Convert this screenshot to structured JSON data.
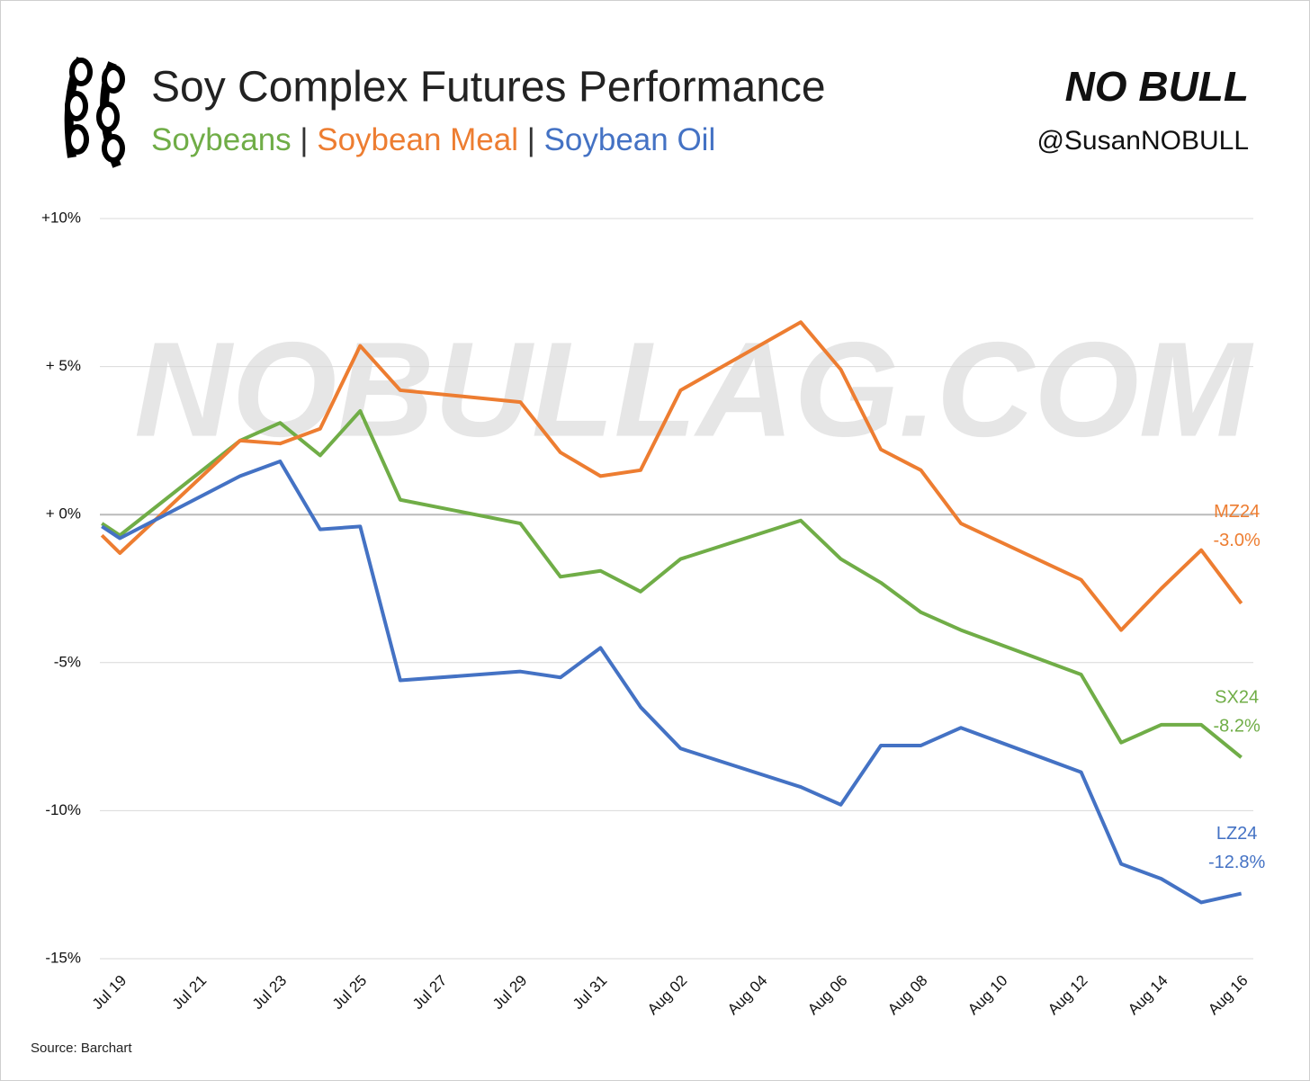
{
  "chart_data": {
    "type": "line",
    "title": "Soy Complex Futures Performance",
    "subtitle_separator": "|",
    "brand": "NO BULL",
    "handle": "@SusanNOBULL",
    "watermark": "NOBULLAG.COM",
    "source": "Source: Barchart",
    "x": [
      -0.45,
      0,
      3,
      4,
      5,
      6,
      7,
      10,
      11,
      12,
      13,
      14,
      17,
      18,
      19,
      20,
      21,
      24,
      25,
      26,
      27,
      28
    ],
    "xlim": [
      -0.5,
      28.3
    ],
    "xticks": [
      {
        "value": 0,
        "label": "Jul 19"
      },
      {
        "value": 2,
        "label": "Jul 21"
      },
      {
        "value": 4,
        "label": "Jul 23"
      },
      {
        "value": 6,
        "label": "Jul 25"
      },
      {
        "value": 8,
        "label": "Jul 27"
      },
      {
        "value": 10,
        "label": "Jul 29"
      },
      {
        "value": 12,
        "label": "Jul 31"
      },
      {
        "value": 14,
        "label": "Aug 02"
      },
      {
        "value": 16,
        "label": "Aug 04"
      },
      {
        "value": 18,
        "label": "Aug 06"
      },
      {
        "value": 20,
        "label": "Aug 08"
      },
      {
        "value": 22,
        "label": "Aug 10"
      },
      {
        "value": 24,
        "label": "Aug 12"
      },
      {
        "value": 26,
        "label": "Aug 14"
      },
      {
        "value": 28,
        "label": "Aug 16"
      }
    ],
    "ylim": [
      -15,
      10
    ],
    "yticks": [
      {
        "value": 10,
        "label": "+10%"
      },
      {
        "value": 5,
        "label": "+ 5%"
      },
      {
        "value": 0,
        "label": "+ 0%"
      },
      {
        "value": -5,
        "label": "-5%"
      },
      {
        "value": -10,
        "label": "-10%"
      },
      {
        "value": -15,
        "label": "-15%"
      }
    ],
    "grid": true,
    "series": [
      {
        "name": "Soybeans",
        "code": "SX24",
        "color": "#70ad47",
        "values": [
          -0.3,
          -0.7,
          2.5,
          3.1,
          2.0,
          3.5,
          0.5,
          -0.3,
          -2.1,
          -1.9,
          -2.6,
          -1.5,
          -0.2,
          -1.5,
          -2.3,
          -3.3,
          -3.9,
          -5.4,
          -7.7,
          -7.1,
          -7.1,
          -8.2
        ],
        "value_labels": [
          null,
          null,
          null,
          null,
          null,
          null,
          null,
          null,
          null,
          null,
          null,
          null,
          null,
          null,
          null,
          null,
          null,
          null,
          null,
          null,
          null,
          "-8.2%"
        ]
      },
      {
        "name": "Soybean Meal",
        "code": "MZ24",
        "color": "#ed7d31",
        "values": [
          -0.7,
          -1.3,
          2.5,
          2.4,
          2.9,
          5.7,
          4.2,
          3.8,
          2.1,
          1.3,
          1.5,
          4.2,
          6.5,
          4.9,
          2.2,
          1.5,
          -0.3,
          -2.2,
          -3.9,
          -2.5,
          -1.2,
          -3.0
        ],
        "value_labels": [
          null,
          null,
          null,
          null,
          null,
          null,
          null,
          null,
          null,
          null,
          null,
          null,
          null,
          null,
          null,
          null,
          null,
          null,
          null,
          null,
          null,
          "-3.0%"
        ]
      },
      {
        "name": "Soybean Oil",
        "code": "LZ24",
        "color": "#4472c4",
        "values": [
          -0.4,
          -0.8,
          1.3,
          1.8,
          -0.5,
          -0.4,
          -5.6,
          -5.3,
          -5.5,
          -4.5,
          -6.5,
          -7.9,
          -9.2,
          -9.8,
          -7.8,
          -7.8,
          -7.2,
          -8.7,
          -11.8,
          -12.3,
          -13.1,
          -12.8
        ],
        "value_labels": [
          null,
          null,
          null,
          null,
          null,
          null,
          null,
          null,
          null,
          null,
          null,
          null,
          null,
          null,
          null,
          null,
          null,
          null,
          null,
          null,
          null,
          "-12.8%"
        ]
      }
    ]
  }
}
